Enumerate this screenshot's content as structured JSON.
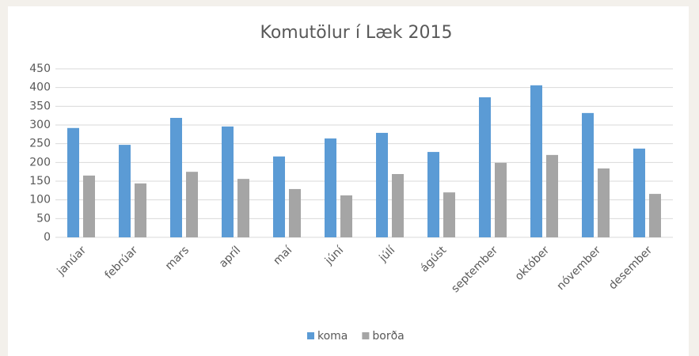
{
  "chart_data": {
    "type": "bar",
    "title": "Komutölur í Læk 2015",
    "categories": [
      "janúar",
      "febrúar",
      "mars",
      "apríl",
      "maí",
      "júní",
      "júlí",
      "ágúst",
      "september",
      "október",
      "nóvember",
      "desember"
    ],
    "series": [
      {
        "name": "koma",
        "color": "#5b9bd5",
        "values": [
          292,
          247,
          319,
          296,
          216,
          264,
          279,
          228,
          374,
          406,
          332,
          237
        ]
      },
      {
        "name": "borða",
        "color": "#a5a5a5",
        "values": [
          165,
          144,
          175,
          156,
          129,
          112,
          169,
          120,
          199,
          220,
          184,
          116
        ]
      }
    ],
    "ylim": [
      0,
      450
    ],
    "yticks": [
      0,
      50,
      100,
      150,
      200,
      250,
      300,
      350,
      400,
      450
    ],
    "grid": true,
    "legend": "bottom"
  }
}
